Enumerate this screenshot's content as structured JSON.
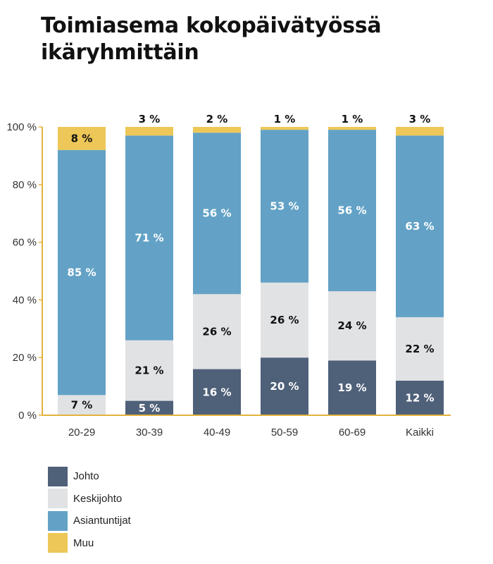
{
  "chart_data": {
    "type": "bar",
    "stacked": true,
    "title": "Toimiasema kokopäivätyössä ikäryhmittäin",
    "title_lines": [
      "Toimiasema kokopäivätyössä",
      "ikäryhmittäin"
    ],
    "categories": [
      "20-29",
      "30-39",
      "40-49",
      "50-59",
      "60-69",
      "Kaikki"
    ],
    "y_ticks": [
      "0 %",
      "20 %",
      "40 %",
      "60 %",
      "80 %",
      "100 %"
    ],
    "ylim": [
      0,
      100
    ],
    "grid": false,
    "legend_position": "bottom-left",
    "series": [
      {
        "name": "Johto",
        "color": "#4f6079",
        "label_color": "#ffffff",
        "values": [
          0,
          5,
          16,
          20,
          19,
          12
        ],
        "labels": [
          "",
          "5 %",
          "16 %",
          "20 %",
          "19 %",
          "12 %"
        ]
      },
      {
        "name": "Keskijohto",
        "color": "#e1e2e4",
        "label_color": "#111111",
        "values": [
          7,
          21,
          26,
          26,
          24,
          22
        ],
        "labels": [
          "7 %",
          "21 %",
          "26 %",
          "26 %",
          "24 %",
          "22 %"
        ]
      },
      {
        "name": "Asiantuntijat",
        "color": "#63a2c6",
        "label_color": "#ffffff",
        "values": [
          85,
          71,
          56,
          53,
          56,
          63
        ],
        "labels": [
          "85 %",
          "71 %",
          "56 %",
          "53 %",
          "56 %",
          "63 %"
        ]
      },
      {
        "name": "Muu",
        "color": "#edc757",
        "label_color": "#111111",
        "values": [
          8,
          3,
          2,
          1,
          1,
          3
        ],
        "labels": [
          "8 %",
          "3 %",
          "2 %",
          "1 %",
          "1 %",
          "3 %"
        ]
      }
    ]
  },
  "colors": {
    "axis": "#e3b23c"
  }
}
